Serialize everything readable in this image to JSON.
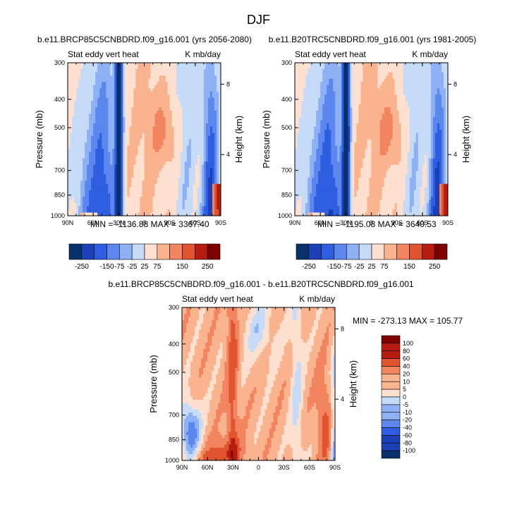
{
  "figure": {
    "title": "DJF"
  },
  "colors": {
    "diverging_11": [
      "#08306b",
      "#1b40b8",
      "#2f5fe0",
      "#5b87ee",
      "#8db1f4",
      "#c6dbf8",
      "#fde0cf",
      "#f9b48f",
      "#f28560",
      "#e0542f",
      "#b71c10",
      "#7f0000"
    ]
  },
  "chart_data": [
    {
      "type": "heatmap",
      "title": "b.e11.BRCP85C5CNBDRD.f09_g16.001 (yrs 2056-2080)",
      "left_label": "Stat eddy vert heat",
      "right_label": "K mb/day",
      "xlabel": "",
      "ylabel": "Pressure (mb)",
      "y2label": "Height (km)",
      "x_ticks": [
        "90N",
        "60N",
        "30N",
        "0",
        "30S",
        "60S",
        "90S"
      ],
      "y_ticks": [
        "300",
        "400",
        "500",
        "700",
        "850",
        "1000"
      ],
      "y2_ticks": [
        "8",
        "4"
      ],
      "stats": {
        "min": "-1136.88",
        "max": "3367.40"
      },
      "stats_text": "MIN = -1136.88   MAX = 3367.40",
      "colorbar": {
        "orientation": "horizontal",
        "labels": [
          "-250",
          "-150",
          "-75",
          "-25",
          "25",
          "75",
          "150",
          "250"
        ]
      }
    },
    {
      "type": "heatmap",
      "title": "b.e11.B20TRC5CNBDRD.f09_g16.001 (yrs 1981-2005)",
      "left_label": "Stat eddy vert heat",
      "right_label": "K mb/day",
      "xlabel": "",
      "ylabel": "Pressure (mb)",
      "y2label": "Height (km)",
      "x_ticks": [
        "90N",
        "60N",
        "30N",
        "0",
        "30S",
        "60S",
        "90S"
      ],
      "y_ticks": [
        "300",
        "400",
        "500",
        "700",
        "850",
        "1000"
      ],
      "y2_ticks": [
        "8",
        "4"
      ],
      "stats": {
        "min": "-1195.08",
        "max": "3640.53"
      },
      "stats_text": "MIN = -1195.08   MAX = 3640.53",
      "colorbar": {
        "orientation": "horizontal",
        "labels": [
          "-250",
          "-150",
          "-75",
          "-25",
          "25",
          "75",
          "150",
          "250"
        ]
      }
    },
    {
      "type": "heatmap",
      "title": "b.e11.BRCP85C5CNBDRD.f09_g16.001 - b.e11.B20TRC5CNBDRD.f09_g16.001",
      "left_label": "Stat eddy vert heat",
      "right_label": "K mb/day",
      "xlabel": "",
      "ylabel": "Pressure (mb)",
      "y2label": "Height (km)",
      "x_ticks": [
        "90N",
        "60N",
        "30N",
        "0",
        "30S",
        "60S",
        "90S"
      ],
      "y_ticks": [
        "300",
        "400",
        "500",
        "700",
        "850",
        "1000"
      ],
      "y2_ticks": [
        "8",
        "4"
      ],
      "stats": {
        "min": "-273.13",
        "max": "105.77"
      },
      "stats_text": "MIN = -273.13  MAX = 105.77",
      "colorbar": {
        "orientation": "vertical",
        "labels": [
          "100",
          "80",
          "60",
          "40",
          "20",
          "10",
          "5",
          "0",
          "-5",
          "-10",
          "-20",
          "-40",
          "-60",
          "-80",
          "-100"
        ]
      }
    }
  ]
}
